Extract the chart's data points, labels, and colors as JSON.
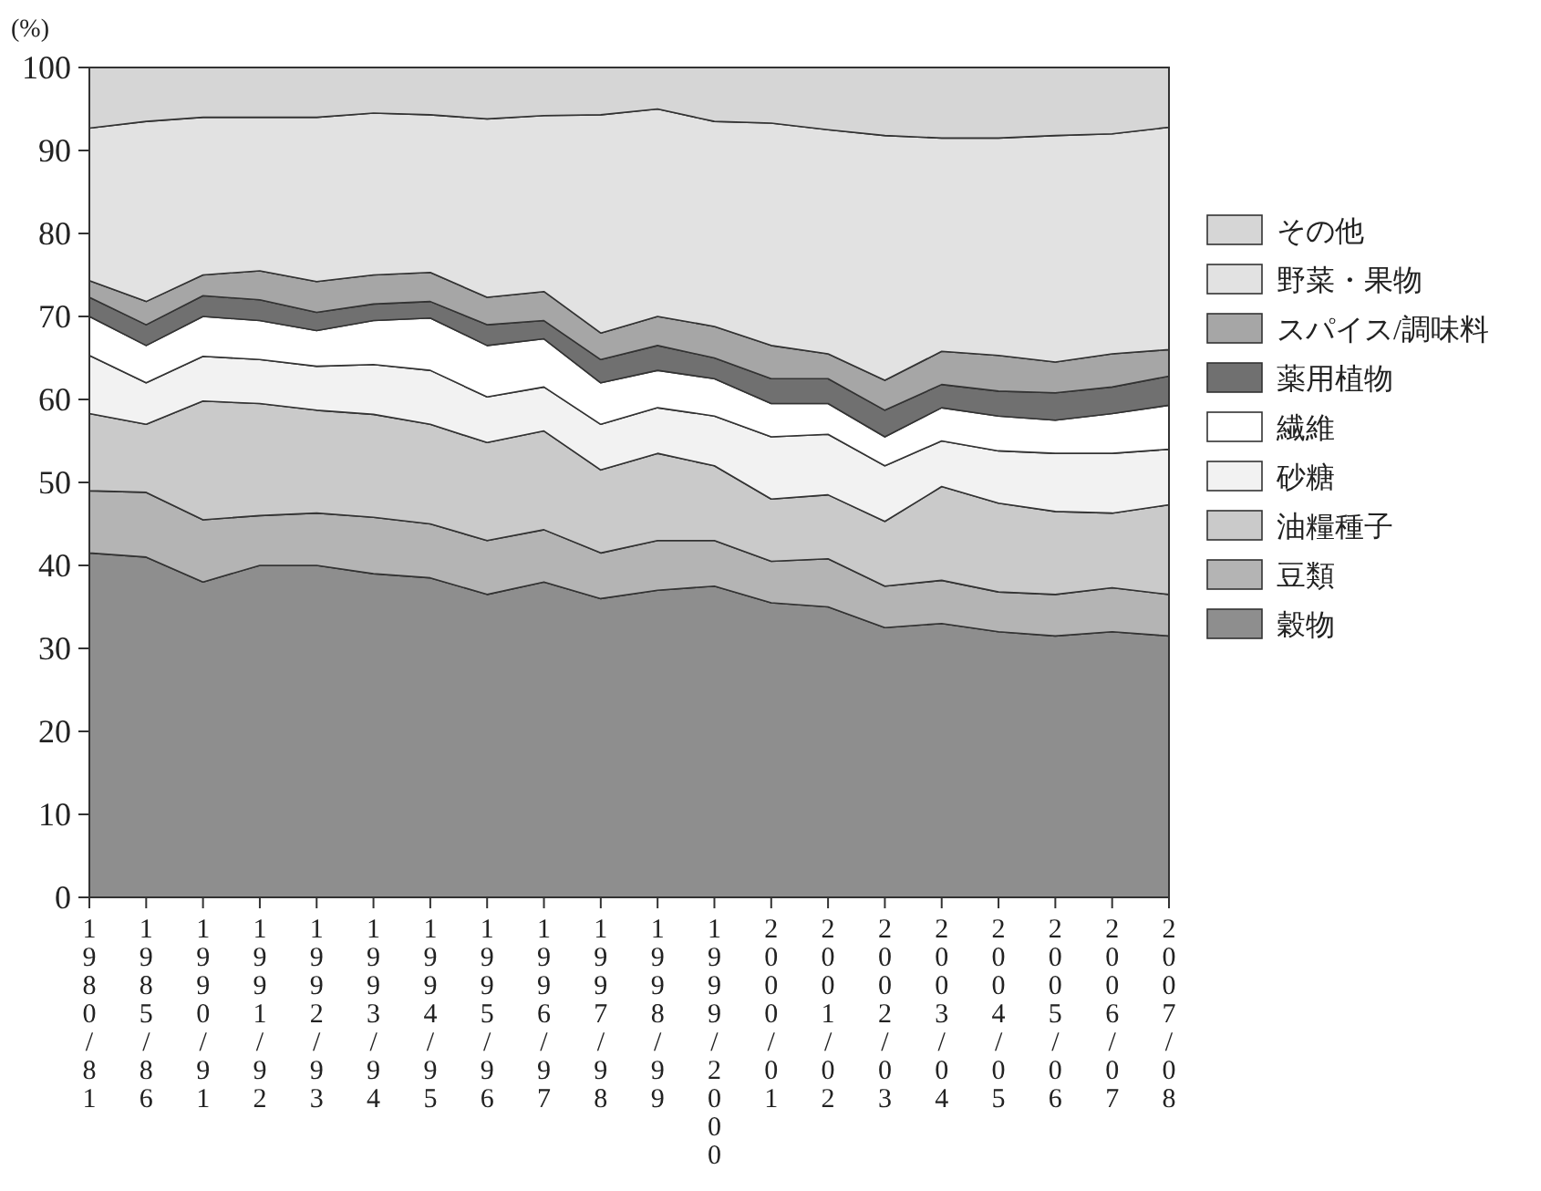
{
  "chart_data": {
    "type": "area",
    "stacked": true,
    "ylabel": "(%)",
    "ylim": [
      0,
      100
    ],
    "yticks": [
      0,
      10,
      20,
      30,
      40,
      50,
      60,
      70,
      80,
      90,
      100
    ],
    "grid": false,
    "legend": "right",
    "categories": [
      "1980/81",
      "1985/86",
      "1990/91",
      "1991/92",
      "1992/93",
      "1993/94",
      "1994/95",
      "1995/96",
      "1996/97",
      "1997/98",
      "1998/99",
      "1999/2000",
      "2000/01",
      "2001/02",
      "2002/03",
      "2003/04",
      "2004/05",
      "2005/06",
      "2006/07",
      "2007/08"
    ],
    "series": [
      {
        "name": "穀物",
        "color": "#8e8e8e",
        "values": [
          41.5,
          41,
          38,
          40,
          40,
          39,
          38.5,
          36.5,
          38,
          36,
          37,
          37.5,
          35.5,
          35,
          32.5,
          33,
          32,
          31.5,
          32,
          31.5
        ]
      },
      {
        "name": "豆類",
        "color": "#b4b4b4",
        "values": [
          7.5,
          7.8,
          7.5,
          6,
          6.3,
          6.8,
          6.5,
          6.5,
          6.3,
          5.5,
          6,
          5.5,
          5,
          5.8,
          5,
          5.2,
          4.8,
          5,
          5.3,
          5
        ]
      },
      {
        "name": "油糧種子",
        "color": "#cacaca",
        "values": [
          9.3,
          8.2,
          14.3,
          13.5,
          12.4,
          12.4,
          12,
          11.8,
          11.9,
          10,
          10.5,
          9,
          7.5,
          7.7,
          7.8,
          11.3,
          10.7,
          10,
          9,
          10.8
        ]
      },
      {
        "name": "砂糖",
        "color": "#f2f2f2",
        "values": [
          7,
          5,
          5.4,
          5.3,
          5.3,
          6,
          6.5,
          5.5,
          5.3,
          5.5,
          5.5,
          6,
          7.5,
          7.3,
          6.7,
          5.5,
          6.3,
          7,
          7.2,
          6.7
        ]
      },
      {
        "name": "繊維",
        "color": "#ffffff",
        "values": [
          4.7,
          4.5,
          4.8,
          4.7,
          4.3,
          5.3,
          6.3,
          6.2,
          5.8,
          5,
          4.5,
          4.5,
          4,
          3.7,
          3.5,
          4,
          4.2,
          4,
          4.8,
          5.3
        ]
      },
      {
        "name": "薬用植物",
        "color": "#707070",
        "values": [
          2.3,
          2.5,
          2.5,
          2.5,
          2.2,
          2,
          2,
          2.5,
          2.2,
          2.8,
          3,
          2.5,
          3,
          3,
          3.2,
          2.8,
          3,
          3.3,
          3.2,
          3.5
        ]
      },
      {
        "name": "スパイス/調味料",
        "color": "#a6a6a6",
        "values": [
          2,
          2.8,
          2.5,
          3.5,
          3.7,
          3.5,
          3.5,
          3.3,
          3.5,
          3.2,
          3.5,
          3.8,
          4,
          3,
          3.6,
          4,
          4.3,
          3.7,
          4,
          3.2
        ]
      },
      {
        "name": "野菜・果物",
        "color": "#e2e2e2",
        "values": [
          18.4,
          21.7,
          19,
          18.5,
          19.8,
          19.5,
          19,
          21.5,
          21.2,
          26.3,
          25,
          24.7,
          26.8,
          27,
          29.5,
          25.7,
          26.2,
          27.3,
          26.5,
          26.8
        ]
      },
      {
        "name": "その他",
        "color": "#d6d6d6",
        "values": [
          7.3,
          6.5,
          6,
          6,
          6,
          5.5,
          5.7,
          6.2,
          5.8,
          5.7,
          5,
          6.5,
          6.7,
          7.5,
          8.2,
          8.5,
          8.5,
          8.2,
          8,
          7.2
        ]
      }
    ]
  }
}
